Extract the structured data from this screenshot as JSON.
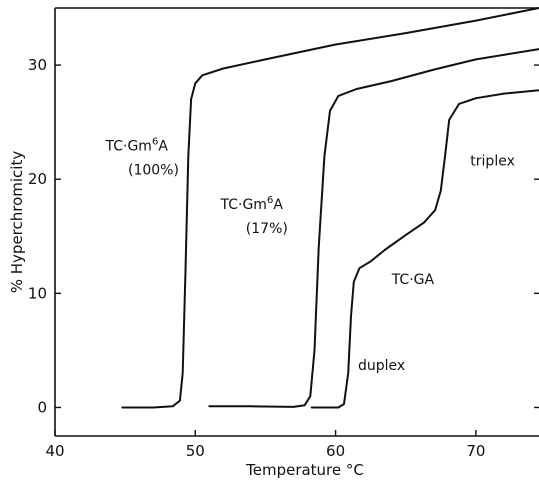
{
  "chart_data": {
    "type": "line",
    "xlabel": "Temperature °C",
    "ylabel": "% Hyperchromicity",
    "xlim": [
      40,
      74.5
    ],
    "ylim": [
      -2.5,
      35
    ],
    "x_ticks": [
      40,
      50,
      60,
      70
    ],
    "y_ticks": [
      0,
      10,
      20,
      30
    ],
    "grid": false,
    "series": [
      {
        "points": [
          [
            44.8,
            0
          ],
          [
            47,
            0
          ],
          [
            48.4,
            0.1
          ],
          [
            48.9,
            0.6
          ],
          [
            49.1,
            3
          ],
          [
            49.3,
            12
          ],
          [
            49.5,
            22
          ],
          [
            49.7,
            27
          ],
          [
            50.0,
            28.4
          ],
          [
            50.5,
            29.1
          ],
          [
            52,
            29.7
          ],
          [
            55,
            30.5
          ],
          [
            60,
            31.8
          ],
          [
            65,
            32.8
          ],
          [
            70,
            33.9
          ],
          [
            74.5,
            35
          ]
        ]
      },
      {
        "points": [
          [
            51,
            0.1
          ],
          [
            54,
            0.1
          ],
          [
            57,
            0.05
          ],
          [
            57.8,
            0.2
          ],
          [
            58.2,
            1
          ],
          [
            58.5,
            5
          ],
          [
            58.8,
            14
          ],
          [
            59.2,
            22
          ],
          [
            59.6,
            26
          ],
          [
            60.2,
            27.3
          ],
          [
            61.5,
            27.9
          ],
          [
            64,
            28.6
          ],
          [
            67,
            29.6
          ],
          [
            70,
            30.5
          ],
          [
            74.5,
            31.4
          ]
        ]
      },
      {
        "points": [
          [
            58.3,
            0
          ],
          [
            60.2,
            0
          ],
          [
            60.6,
            0.3
          ],
          [
            60.9,
            3
          ],
          [
            61.1,
            8
          ],
          [
            61.3,
            11
          ],
          [
            61.7,
            12.2
          ],
          [
            62.5,
            12.8
          ],
          [
            63.5,
            13.8
          ],
          [
            65,
            15.1
          ],
          [
            66.3,
            16.2
          ],
          [
            67.1,
            17.3
          ],
          [
            67.5,
            19
          ],
          [
            67.8,
            22
          ],
          [
            68.1,
            25.2
          ],
          [
            68.8,
            26.6
          ],
          [
            70,
            27.1
          ],
          [
            72,
            27.5
          ],
          [
            74.5,
            27.8
          ]
        ]
      }
    ],
    "annotations": [
      {
        "base": "TC·Gm",
        "sup": "6",
        "tail": "A",
        "x": 43.6,
        "y": 22.5
      },
      {
        "text": "(100%)",
        "x": 45.2,
        "y": 20.4
      },
      {
        "base": "TC·Gm",
        "sup": "6",
        "tail": "A",
        "x": 51.8,
        "y": 17.4
      },
      {
        "text": "(17%)",
        "x": 53.6,
        "y": 15.3
      },
      {
        "text": "triplex",
        "x": 69.6,
        "y": 21.2
      },
      {
        "text": "TC·GA",
        "x": 64.0,
        "y": 10.8
      },
      {
        "text": "duplex",
        "x": 61.6,
        "y": 3.3
      }
    ]
  }
}
